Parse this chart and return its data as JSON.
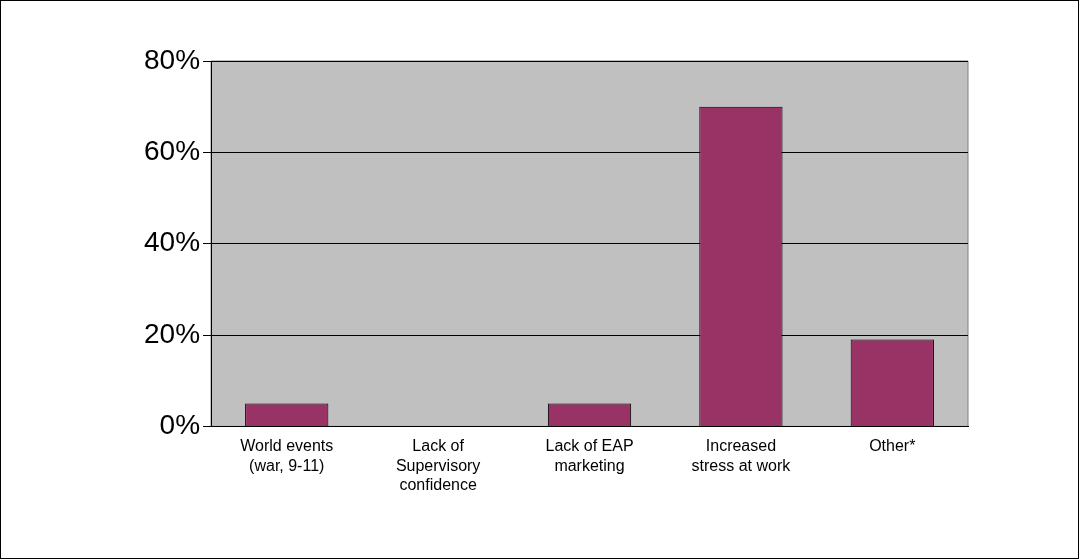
{
  "chart_data": {
    "type": "bar",
    "categories": [
      "World events (war, 9-11)",
      "Lack of Supervisory confidence",
      "Lack of EAP marketing",
      "Increased stress at work",
      "Other*"
    ],
    "values": [
      5,
      0,
      5,
      70,
      19
    ],
    "color": "#993366",
    "ylim": [
      0,
      80
    ],
    "yticks": [
      {
        "value": 0,
        "label": "0%"
      },
      {
        "value": 20,
        "label": "20%"
      },
      {
        "value": 40,
        "label": "40%"
      },
      {
        "value": 60,
        "label": "60%"
      },
      {
        "value": 80,
        "label": "80%"
      }
    ],
    "grid": "y"
  }
}
